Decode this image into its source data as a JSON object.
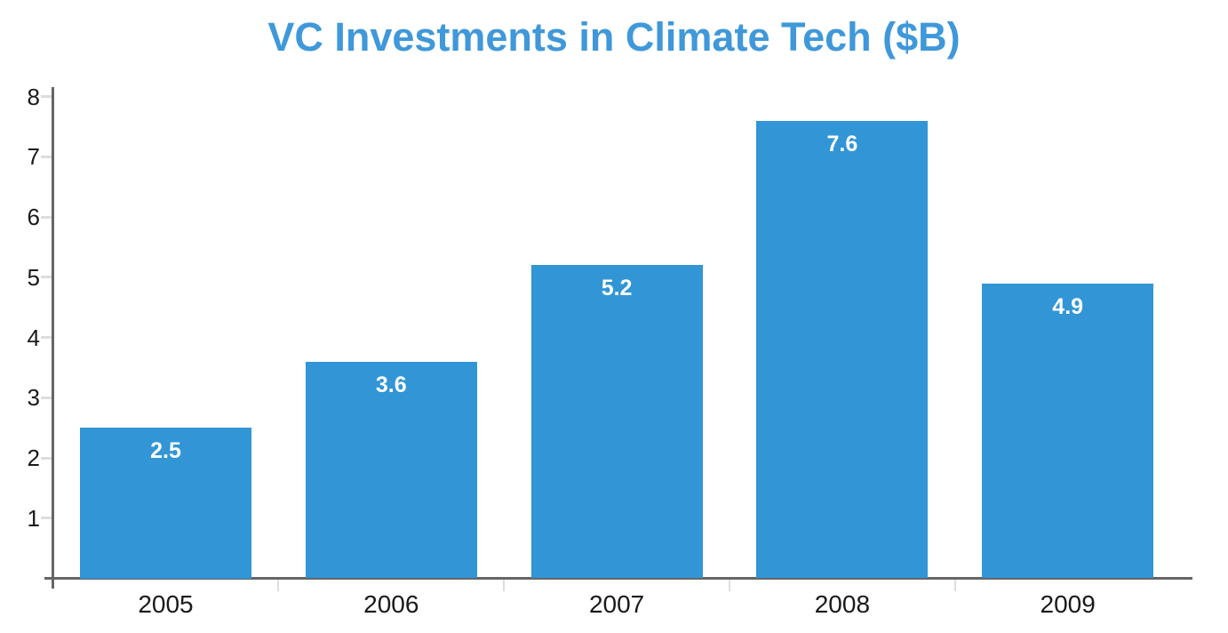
{
  "title": {
    "text": "VC Investments in Climate Tech ($B)",
    "color": "#3f98da"
  },
  "chart_data": {
    "type": "bar",
    "title": "VC Investments in Climate Tech ($B)",
    "categories": [
      "2005",
      "2006",
      "2007",
      "2008",
      "2009"
    ],
    "values": [
      2.5,
      3.6,
      5.2,
      7.6,
      4.9
    ],
    "value_labels": [
      "2.5",
      "3.6",
      "5.2",
      "7.6",
      "4.9"
    ],
    "xlabel": "",
    "ylabel": "",
    "ylim": [
      0,
      8.15
    ],
    "yticks": [
      1,
      2,
      3,
      4,
      5,
      6,
      7,
      8
    ],
    "ytick_labels": [
      "1",
      "2",
      "3",
      "4",
      "5",
      "6",
      "7",
      "8"
    ],
    "grid": false,
    "legend": false,
    "bar_color": "#3295d6",
    "bar_label_color": "#ffffff",
    "axis_line_color": "#666666",
    "tick_mark_color": "#dddddd",
    "axis_text_color": "#1a1a1a"
  }
}
